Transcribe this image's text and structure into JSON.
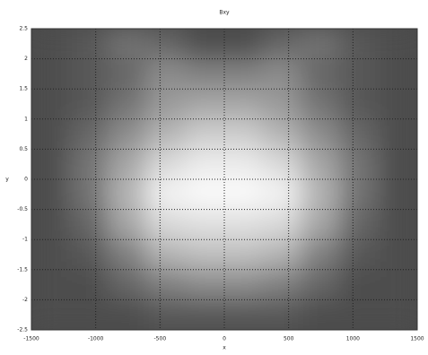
{
  "chart_data": {
    "type": "heatmap",
    "title": "Bxy",
    "x_label": "x",
    "y_label": "y",
    "xlim": [
      -1500,
      1500
    ],
    "xticks": [
      -1500,
      -1000,
      -500,
      0,
      500,
      1000,
      1500
    ],
    "ylim": [
      -2.5,
      2.5
    ],
    "yticks": [
      -2.5,
      -2,
      -1.5,
      -1,
      -0.5,
      0,
      0.5,
      1,
      1.5,
      2,
      2.5
    ],
    "zlim": [
      0,
      1
    ],
    "grid": true,
    "z": [
      [
        0.3,
        0.35,
        0.45,
        0.4,
        0.3,
        0.3,
        0.4,
        0.45,
        0.35,
        0.3
      ],
      [
        0.3,
        0.35,
        0.4,
        0.55,
        0.5,
        0.5,
        0.55,
        0.4,
        0.35,
        0.3
      ],
      [
        0.3,
        0.35,
        0.45,
        0.6,
        0.65,
        0.65,
        0.6,
        0.45,
        0.35,
        0.3
      ],
      [
        0.3,
        0.4,
        0.55,
        0.7,
        0.8,
        0.8,
        0.7,
        0.55,
        0.4,
        0.3
      ],
      [
        0.3,
        0.45,
        0.65,
        0.85,
        0.92,
        0.92,
        0.85,
        0.65,
        0.45,
        0.3
      ],
      [
        0.3,
        0.45,
        0.7,
        0.95,
        0.98,
        0.98,
        0.95,
        0.7,
        0.45,
        0.3
      ],
      [
        0.3,
        0.4,
        0.65,
        0.85,
        0.88,
        0.88,
        0.85,
        0.65,
        0.4,
        0.3
      ],
      [
        0.3,
        0.35,
        0.5,
        0.7,
        0.75,
        0.75,
        0.7,
        0.5,
        0.35,
        0.3
      ],
      [
        0.3,
        0.3,
        0.4,
        0.5,
        0.55,
        0.55,
        0.5,
        0.4,
        0.3,
        0.3
      ],
      [
        0.3,
        0.3,
        0.3,
        0.35,
        0.35,
        0.35,
        0.35,
        0.3,
        0.3,
        0.3
      ]
    ]
  }
}
